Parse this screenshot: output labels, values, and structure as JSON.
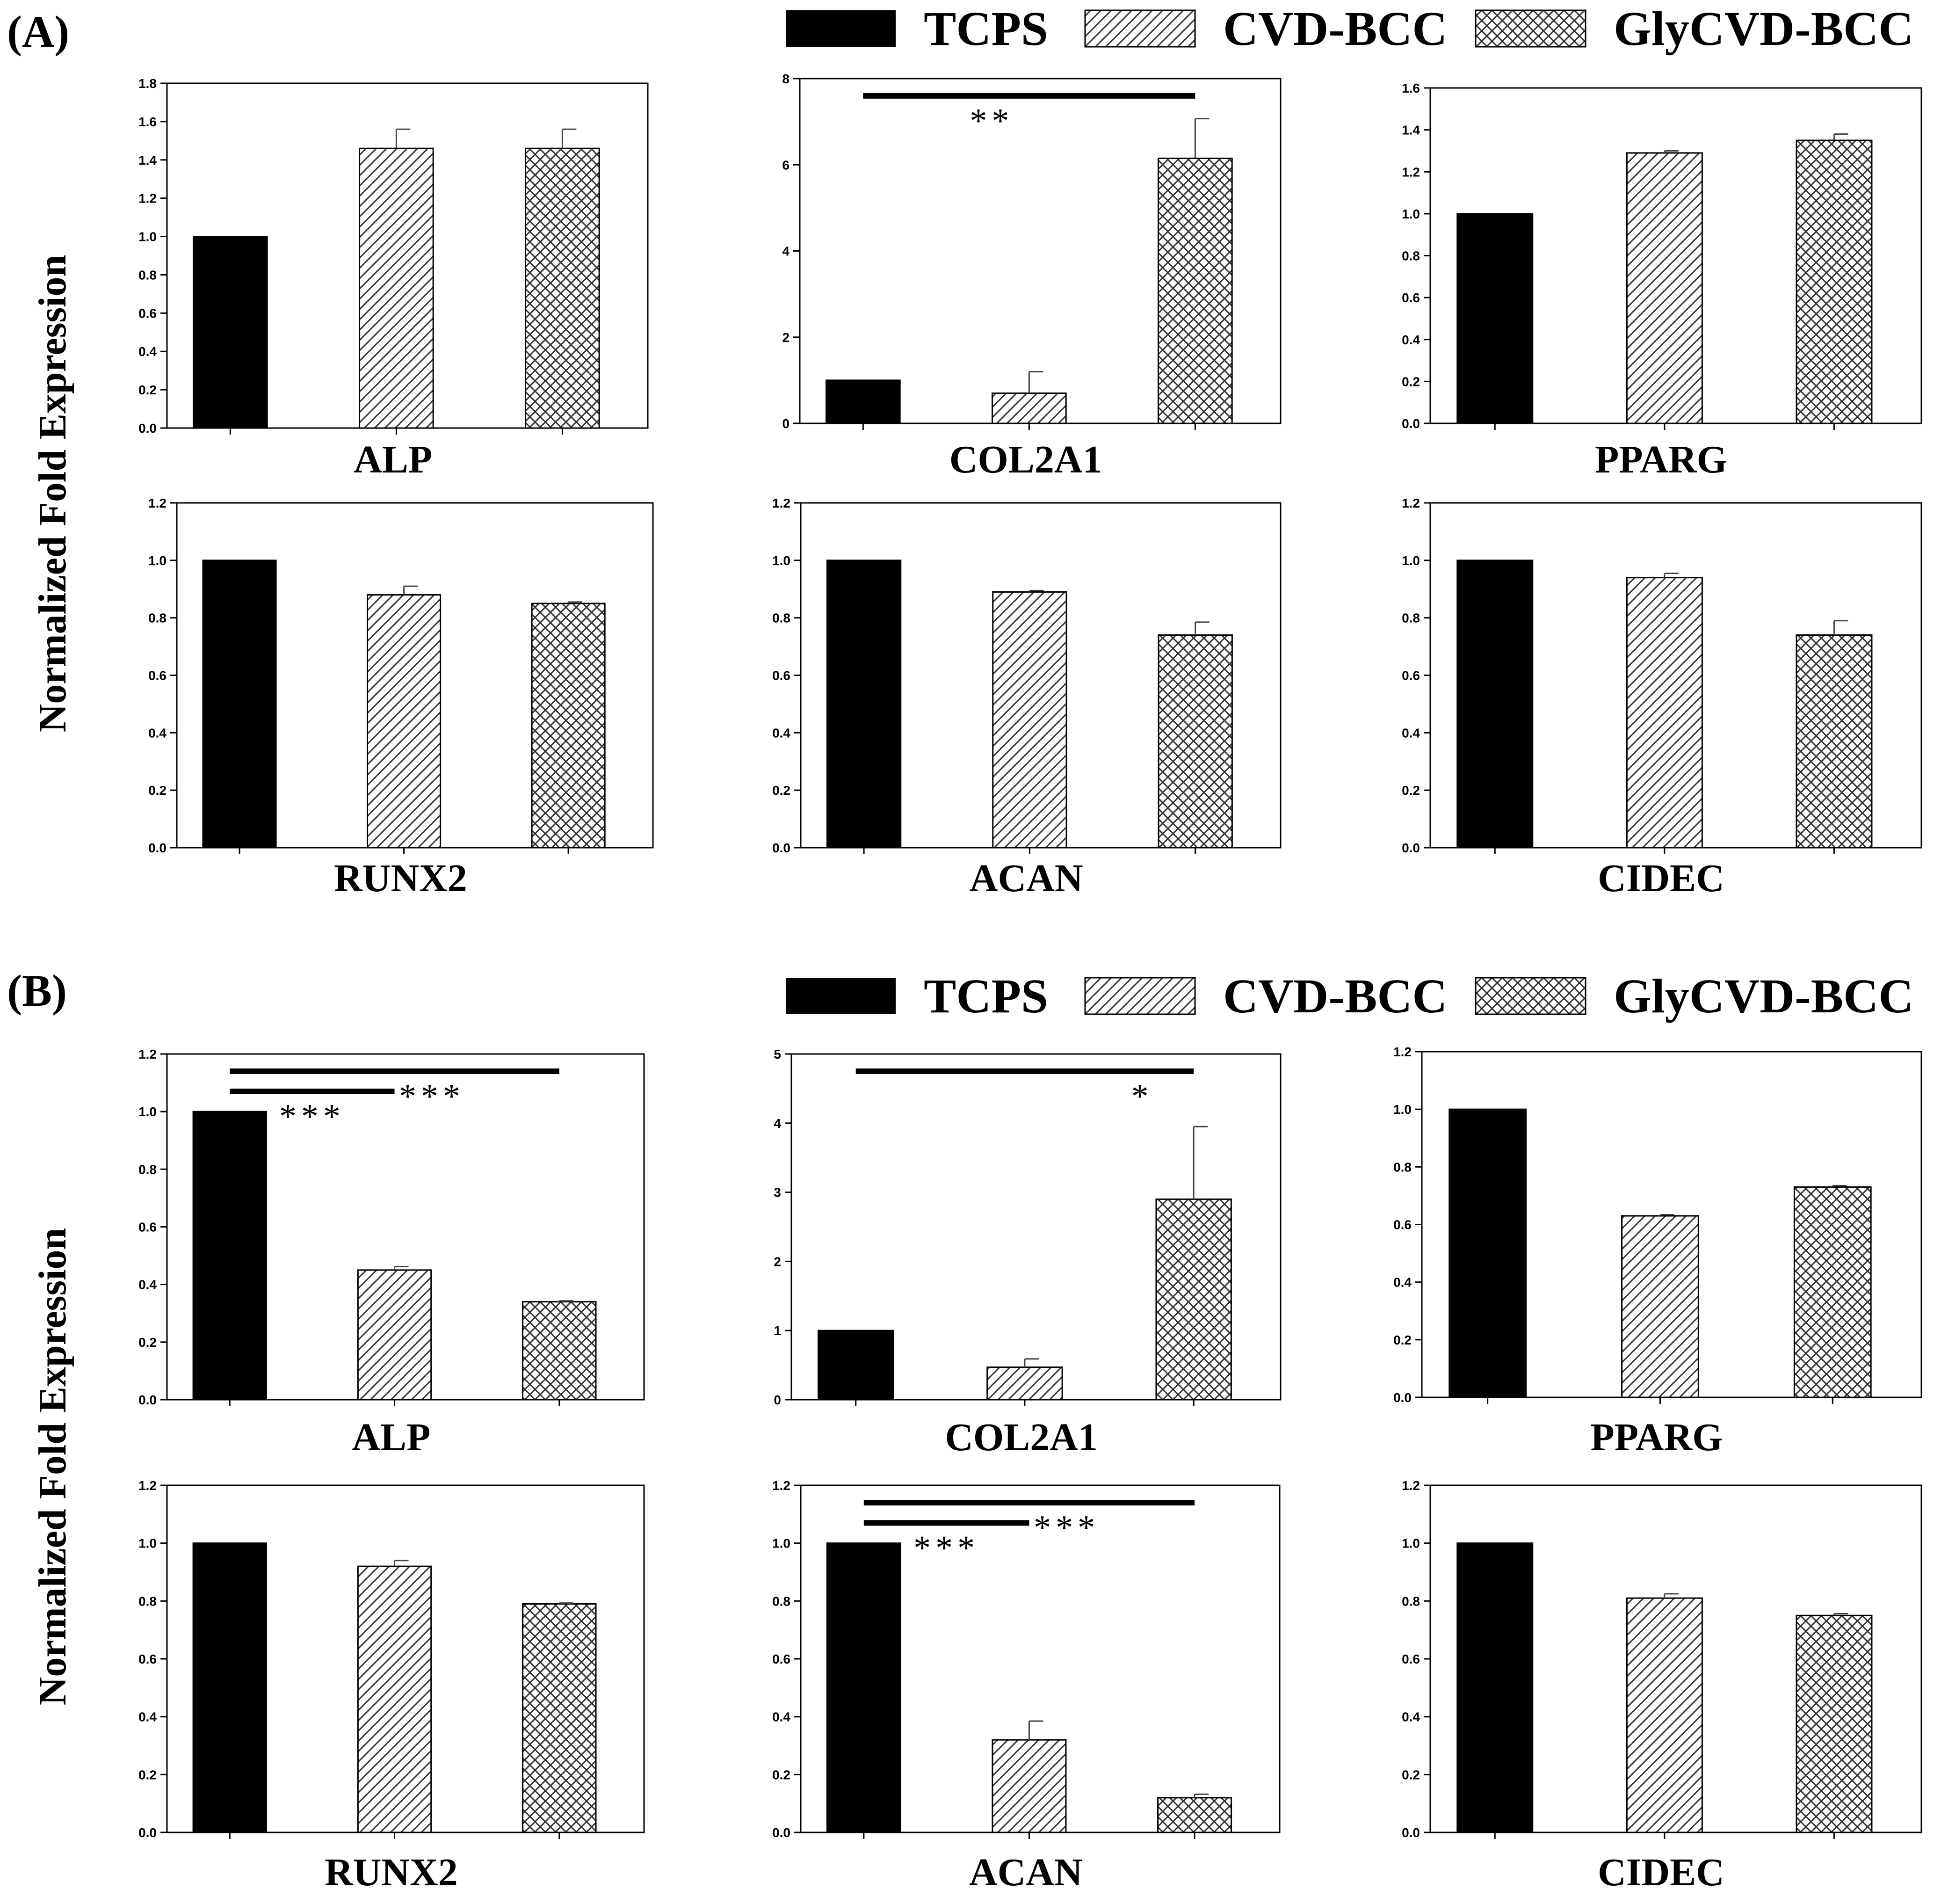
{
  "figure": {
    "panel_labels": [
      "(A)",
      "(B)"
    ],
    "y_axis_label": "Normalized Fold Expression",
    "legend": [
      {
        "label": "TCPS",
        "pattern": "solid"
      },
      {
        "label": "CVD-BCC",
        "pattern": "diagonal"
      },
      {
        "label": "GlyCVD-BCC",
        "pattern": "crosshatch"
      }
    ]
  },
  "chart_data": [
    {
      "panel": "A",
      "type": "bar",
      "title": "ALP",
      "categories": [
        "TCPS",
        "CVD-BCC",
        "GlyCVD-BCC"
      ],
      "values": [
        1.0,
        1.46,
        1.46
      ],
      "errors": [
        0,
        0.1,
        0.1
      ],
      "ylim": [
        0,
        1.8
      ],
      "yticks": [
        "0.0",
        "0.2",
        "0.4",
        "0.6",
        "0.8",
        "1.0",
        "1.2",
        "1.4",
        "1.6",
        "1.8"
      ],
      "significance": []
    },
    {
      "panel": "A",
      "type": "bar",
      "title": "COL2A1",
      "categories": [
        "TCPS",
        "CVD-BCC",
        "GlyCVD-BCC"
      ],
      "values": [
        1.0,
        0.7,
        6.15
      ],
      "errors": [
        0,
        0.5,
        0.92
      ],
      "ylim": [
        0,
        8
      ],
      "yticks": [
        "0",
        "2",
        "4",
        "6",
        "8"
      ],
      "significance": [
        {
          "from": 0,
          "to": 2,
          "label": "**",
          "level": 7.6
        }
      ]
    },
    {
      "panel": "A",
      "type": "bar",
      "title": "PPARG",
      "categories": [
        "TCPS",
        "CVD-BCC",
        "GlyCVD-BCC"
      ],
      "values": [
        1.0,
        1.29,
        1.35
      ],
      "errors": [
        0,
        0.01,
        0.03
      ],
      "ylim": [
        0,
        1.6
      ],
      "yticks": [
        "0.0",
        "0.2",
        "0.4",
        "0.6",
        "0.8",
        "1.0",
        "1.2",
        "1.4",
        "1.6"
      ],
      "significance": []
    },
    {
      "panel": "A",
      "type": "bar",
      "title": "RUNX2",
      "categories": [
        "TCPS",
        "CVD-BCC",
        "GlyCVD-BCC"
      ],
      "values": [
        1.0,
        0.88,
        0.85
      ],
      "errors": [
        0,
        0.03,
        0.005
      ],
      "ylim": [
        0,
        1.2
      ],
      "yticks": [
        "0.0",
        "0.2",
        "0.4",
        "0.6",
        "0.8",
        "1.0",
        "1.2"
      ],
      "significance": []
    },
    {
      "panel": "A",
      "type": "bar",
      "title": "ACAN",
      "categories": [
        "TCPS",
        "CVD-BCC",
        "GlyCVD-BCC"
      ],
      "values": [
        1.0,
        0.89,
        0.74
      ],
      "errors": [
        0,
        0.005,
        0.045
      ],
      "ylim": [
        0,
        1.2
      ],
      "yticks": [
        "0.0",
        "0.2",
        "0.4",
        "0.6",
        "0.8",
        "1.0",
        "1.2"
      ],
      "significance": []
    },
    {
      "panel": "A",
      "type": "bar",
      "title": "CIDEC",
      "categories": [
        "TCPS",
        "CVD-BCC",
        "GlyCVD-BCC"
      ],
      "values": [
        1.0,
        0.94,
        0.74
      ],
      "errors": [
        0,
        0.015,
        0.05
      ],
      "ylim": [
        0,
        1.2
      ],
      "yticks": [
        "0.0",
        "0.2",
        "0.4",
        "0.6",
        "0.8",
        "1.0",
        "1.2"
      ],
      "significance": []
    },
    {
      "panel": "B",
      "type": "bar",
      "title": "ALP",
      "categories": [
        "TCPS",
        "CVD-BCC",
        "GlyCVD-BCC"
      ],
      "values": [
        1.0,
        0.45,
        0.34
      ],
      "errors": [
        0,
        0.012,
        0.003
      ],
      "ylim": [
        0,
        1.2
      ],
      "yticks": [
        "0.0",
        "0.2",
        "0.4",
        "0.6",
        "0.8",
        "1.0",
        "1.2"
      ],
      "significance": [
        {
          "from": 0,
          "to": 1,
          "label": "***",
          "level": 1.07
        },
        {
          "from": 0,
          "to": 2,
          "label": "***",
          "level": 1.14
        }
      ]
    },
    {
      "panel": "B",
      "type": "bar",
      "title": "COL2A1",
      "categories": [
        "TCPS",
        "CVD-BCC",
        "GlyCVD-BCC"
      ],
      "values": [
        1.0,
        0.47,
        2.9
      ],
      "errors": [
        0,
        0.12,
        1.05
      ],
      "ylim": [
        0,
        5
      ],
      "yticks": [
        "0",
        "1",
        "2",
        "3",
        "4",
        "5"
      ],
      "significance": [
        {
          "from": 0,
          "to": 2,
          "label": "*",
          "level": 4.75
        }
      ]
    },
    {
      "panel": "B",
      "type": "bar",
      "title": "PPARG",
      "categories": [
        "TCPS",
        "CVD-BCC",
        "GlyCVD-BCC"
      ],
      "values": [
        1.0,
        0.63,
        0.73
      ],
      "errors": [
        0,
        0.004,
        0.005
      ],
      "ylim": [
        0,
        1.2
      ],
      "yticks": [
        "0.0",
        "0.2",
        "0.4",
        "0.6",
        "0.8",
        "1.0",
        "1.2"
      ],
      "significance": []
    },
    {
      "panel": "B",
      "type": "bar",
      "title": "RUNX2",
      "categories": [
        "TCPS",
        "CVD-BCC",
        "GlyCVD-BCC"
      ],
      "values": [
        1.0,
        0.92,
        0.79
      ],
      "errors": [
        0,
        0.02,
        0.003
      ],
      "ylim": [
        0,
        1.2
      ],
      "yticks": [
        "0.0",
        "0.2",
        "0.4",
        "0.6",
        "0.8",
        "1.0",
        "1.2"
      ],
      "significance": []
    },
    {
      "panel": "B",
      "type": "bar",
      "title": "ACAN",
      "categories": [
        "TCPS",
        "CVD-BCC",
        "GlyCVD-BCC"
      ],
      "values": [
        1.0,
        0.32,
        0.12
      ],
      "errors": [
        0,
        0.065,
        0.012
      ],
      "ylim": [
        0,
        1.2
      ],
      "yticks": [
        "0.0",
        "0.2",
        "0.4",
        "0.6",
        "0.8",
        "1.0",
        "1.2"
      ],
      "significance": [
        {
          "from": 0,
          "to": 1,
          "label": "***",
          "level": 1.07
        },
        {
          "from": 0,
          "to": 2,
          "label": "***",
          "level": 1.14
        }
      ]
    },
    {
      "panel": "B",
      "type": "bar",
      "title": "CIDEC",
      "categories": [
        "TCPS",
        "CVD-BCC",
        "GlyCVD-BCC"
      ],
      "values": [
        1.0,
        0.81,
        0.75
      ],
      "errors": [
        0,
        0.015,
        0.006
      ],
      "ylim": [
        0,
        1.2
      ],
      "yticks": [
        "0.0",
        "0.2",
        "0.4",
        "0.6",
        "0.8",
        "1.0",
        "1.2"
      ],
      "significance": []
    }
  ]
}
